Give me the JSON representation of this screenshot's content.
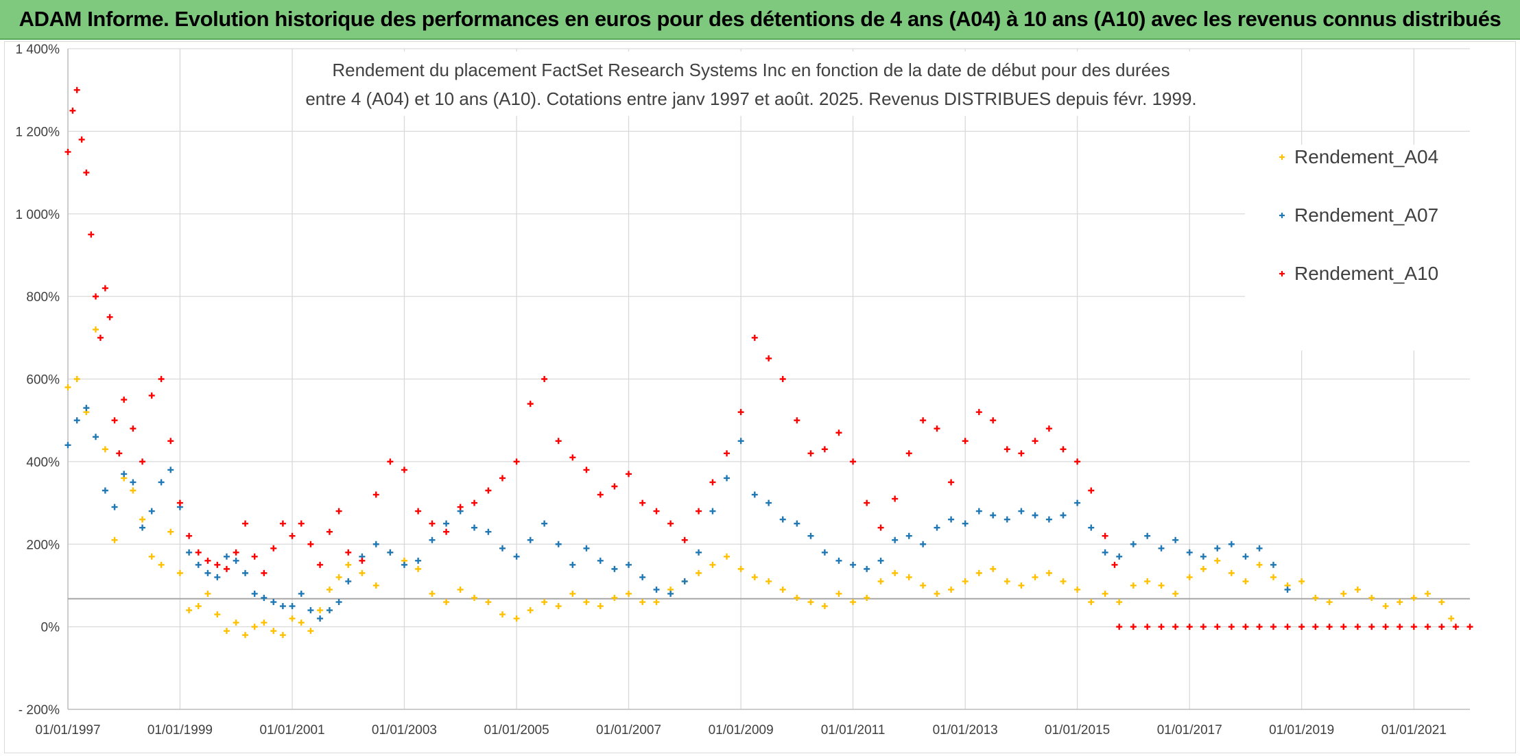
{
  "banner": {
    "title": "ADAM Informe. Evolution historique des performances en euros pour des détentions de 4 ans (A04) à 10 ans (A10) avec les revenus connus distribués",
    "background": "#7fc97f"
  },
  "chart_data": {
    "type": "scatter",
    "title_lines": [
      "Rendement du placement FactSet Research Systems Inc en fonction de la date de début pour des durées",
      "entre 4 (A04) et 10 ans (A10). Cotations entre janv 1997 et août. 2025. Revenus DISTRIBUES depuis févr. 1999."
    ],
    "xlabel": "",
    "ylabel": "",
    "x_ticks": [
      "01/01/1997",
      "01/01/1999",
      "01/01/2001",
      "01/01/2003",
      "01/01/2005",
      "01/01/2007",
      "01/01/2009",
      "01/01/2011",
      "01/01/2013",
      "01/01/2015",
      "01/01/2017",
      "01/01/2019",
      "01/01/2021"
    ],
    "y_ticks": [
      "- 200%",
      "0%",
      "200%",
      "400%",
      "600%",
      "800%",
      "1 000%",
      "1 200%",
      "1 400%"
    ],
    "xlim": [
      "1997-01-01",
      "2022-01-01"
    ],
    "ylim": [
      -200,
      1400
    ],
    "reference_line": 68,
    "grid": true,
    "legend_position": "top-right",
    "series": [
      {
        "name": "Rendement_A04",
        "color": "#ffc000",
        "x": [
          "1997-01",
          "1997-03",
          "1997-05",
          "1997-07",
          "1997-09",
          "1997-11",
          "1998-01",
          "1998-03",
          "1998-05",
          "1998-07",
          "1998-09",
          "1998-11",
          "1999-01",
          "1999-03",
          "1999-05",
          "1999-07",
          "1999-09",
          "1999-11",
          "2000-01",
          "2000-03",
          "2000-05",
          "2000-07",
          "2000-09",
          "2000-11",
          "2001-01",
          "2001-03",
          "2001-05",
          "2001-07",
          "2001-09",
          "2001-11",
          "2002-01",
          "2002-04",
          "2002-07",
          "2002-10",
          "2003-01",
          "2003-04",
          "2003-07",
          "2003-10",
          "2004-01",
          "2004-04",
          "2004-07",
          "2004-10",
          "2005-01",
          "2005-04",
          "2005-07",
          "2005-10",
          "2006-01",
          "2006-04",
          "2006-07",
          "2006-10",
          "2007-01",
          "2007-04",
          "2007-07",
          "2007-10",
          "2008-01",
          "2008-04",
          "2008-07",
          "2008-10",
          "2009-01",
          "2009-04",
          "2009-07",
          "2009-10",
          "2010-01",
          "2010-04",
          "2010-07",
          "2010-10",
          "2011-01",
          "2011-04",
          "2011-07",
          "2011-10",
          "2012-01",
          "2012-04",
          "2012-07",
          "2012-10",
          "2013-01",
          "2013-04",
          "2013-07",
          "2013-10",
          "2014-01",
          "2014-04",
          "2014-07",
          "2014-10",
          "2015-01",
          "2015-04",
          "2015-07",
          "2015-10",
          "2016-01",
          "2016-04",
          "2016-07",
          "2016-10",
          "2017-01",
          "2017-04",
          "2017-07",
          "2017-10",
          "2018-01",
          "2018-04",
          "2018-07",
          "2018-10",
          "2019-01",
          "2019-04",
          "2019-07",
          "2019-10",
          "2020-01",
          "2020-04",
          "2020-07",
          "2020-10",
          "2021-01",
          "2021-04",
          "2021-07",
          "2021-09"
        ],
        "values": [
          580,
          600,
          520,
          720,
          430,
          210,
          360,
          330,
          260,
          170,
          150,
          230,
          130,
          40,
          50,
          80,
          30,
          -10,
          10,
          -20,
          0,
          10,
          -10,
          -20,
          20,
          10,
          -10,
          40,
          90,
          120,
          150,
          130,
          100,
          180,
          160,
          140,
          80,
          60,
          90,
          70,
          60,
          30,
          20,
          40,
          60,
          50,
          80,
          60,
          50,
          70,
          80,
          60,
          60,
          90,
          110,
          130,
          150,
          170,
          140,
          120,
          110,
          90,
          70,
          60,
          50,
          80,
          60,
          70,
          110,
          130,
          120,
          100,
          80,
          90,
          110,
          130,
          140,
          110,
          100,
          120,
          130,
          110,
          90,
          60,
          80,
          60,
          100,
          110,
          100,
          80,
          120,
          140,
          160,
          130,
          110,
          150,
          120,
          100,
          110,
          70,
          60,
          80,
          90,
          70,
          50,
          60,
          70,
          80,
          60,
          20
        ]
      },
      {
        "name": "Rendement_A07",
        "color": "#1f77b4",
        "x": [
          "1997-01",
          "1997-03",
          "1997-05",
          "1997-07",
          "1997-09",
          "1997-11",
          "1998-01",
          "1998-03",
          "1998-05",
          "1998-07",
          "1998-09",
          "1998-11",
          "1999-01",
          "1999-03",
          "1999-05",
          "1999-07",
          "1999-09",
          "1999-11",
          "2000-01",
          "2000-03",
          "2000-05",
          "2000-07",
          "2000-09",
          "2000-11",
          "2001-01",
          "2001-03",
          "2001-05",
          "2001-07",
          "2001-09",
          "2001-11",
          "2002-01",
          "2002-04",
          "2002-07",
          "2002-10",
          "2003-01",
          "2003-04",
          "2003-07",
          "2003-10",
          "2004-01",
          "2004-04",
          "2004-07",
          "2004-10",
          "2005-01",
          "2005-04",
          "2005-07",
          "2005-10",
          "2006-01",
          "2006-04",
          "2006-07",
          "2006-10",
          "2007-01",
          "2007-04",
          "2007-07",
          "2007-10",
          "2008-01",
          "2008-04",
          "2008-07",
          "2008-10",
          "2009-01",
          "2009-04",
          "2009-07",
          "2009-10",
          "2010-01",
          "2010-04",
          "2010-07",
          "2010-10",
          "2011-01",
          "2011-04",
          "2011-07",
          "2011-10",
          "2012-01",
          "2012-04",
          "2012-07",
          "2012-10",
          "2013-01",
          "2013-04",
          "2013-07",
          "2013-10",
          "2014-01",
          "2014-04",
          "2014-07",
          "2014-10",
          "2015-01",
          "2015-04",
          "2015-07",
          "2015-10",
          "2016-01",
          "2016-04",
          "2016-07",
          "2016-10",
          "2017-01",
          "2017-04",
          "2017-07",
          "2017-10",
          "2018-01",
          "2018-04",
          "2018-07",
          "2018-10"
        ],
        "values": [
          440,
          500,
          530,
          460,
          330,
          290,
          370,
          350,
          240,
          280,
          350,
          380,
          290,
          180,
          150,
          130,
          120,
          170,
          160,
          130,
          80,
          70,
          60,
          50,
          50,
          80,
          40,
          20,
          40,
          60,
          110,
          170,
          200,
          180,
          150,
          160,
          210,
          250,
          280,
          240,
          230,
          190,
          170,
          210,
          250,
          200,
          150,
          190,
          160,
          140,
          150,
          120,
          90,
          80,
          110,
          180,
          280,
          360,
          450,
          320,
          300,
          260,
          250,
          220,
          180,
          160,
          150,
          140,
          160,
          210,
          220,
          200,
          240,
          260,
          250,
          280,
          270,
          260,
          280,
          270,
          260,
          270,
          300,
          240,
          180,
          170,
          200,
          220,
          190,
          210,
          180,
          170,
          190,
          200,
          170,
          190,
          150,
          90
        ]
      },
      {
        "name": "Rendement_A10",
        "color": "#ff0000",
        "x": [
          "1997-01",
          "1997-02",
          "1997-03",
          "1997-04",
          "1997-05",
          "1997-06",
          "1997-07",
          "1997-08",
          "1997-09",
          "1997-10",
          "1997-11",
          "1997-12",
          "1998-01",
          "1998-03",
          "1998-05",
          "1998-07",
          "1998-09",
          "1998-11",
          "1999-01",
          "1999-03",
          "1999-05",
          "1999-07",
          "1999-09",
          "1999-11",
          "2000-01",
          "2000-03",
          "2000-05",
          "2000-07",
          "2000-09",
          "2000-11",
          "2001-01",
          "2001-03",
          "2001-05",
          "2001-07",
          "2001-09",
          "2001-11",
          "2002-01",
          "2002-04",
          "2002-07",
          "2002-10",
          "2003-01",
          "2003-04",
          "2003-07",
          "2003-10",
          "2004-01",
          "2004-04",
          "2004-07",
          "2004-10",
          "2005-01",
          "2005-04",
          "2005-07",
          "2005-10",
          "2006-01",
          "2006-04",
          "2006-07",
          "2006-10",
          "2007-01",
          "2007-04",
          "2007-07",
          "2007-10",
          "2008-01",
          "2008-04",
          "2008-07",
          "2008-10",
          "2009-01",
          "2009-04",
          "2009-07",
          "2009-10",
          "2010-01",
          "2010-04",
          "2010-07",
          "2010-10",
          "2011-01",
          "2011-04",
          "2011-07",
          "2011-10",
          "2012-01",
          "2012-04",
          "2012-07",
          "2012-10",
          "2013-01",
          "2013-04",
          "2013-07",
          "2013-10",
          "2014-01",
          "2014-04",
          "2014-07",
          "2014-10",
          "2015-01",
          "2015-04",
          "2015-07",
          "2015-09"
        ],
        "values": [
          1150,
          1250,
          1300,
          1180,
          1100,
          950,
          800,
          700,
          820,
          750,
          500,
          420,
          550,
          480,
          400,
          560,
          600,
          450,
          300,
          220,
          180,
          160,
          150,
          140,
          180,
          250,
          170,
          130,
          190,
          250,
          220,
          250,
          200,
          150,
          230,
          280,
          180,
          160,
          320,
          400,
          380,
          280,
          250,
          230,
          290,
          300,
          330,
          360,
          400,
          540,
          600,
          450,
          410,
          380,
          320,
          340,
          370,
          300,
          280,
          250,
          210,
          280,
          350,
          420,
          520,
          700,
          650,
          600,
          500,
          420,
          430,
          470,
          400,
          300,
          240,
          310,
          420,
          500,
          480,
          350,
          450,
          520,
          500,
          430,
          420,
          450,
          480,
          430,
          400,
          330,
          220,
          150
        ]
      },
      {
        "name": "Rendement_A10",
        "color": "#ff0000",
        "x": [
          "2015-10",
          "2016-01",
          "2016-04",
          "2016-07",
          "2016-10",
          "2017-01",
          "2017-04",
          "2017-07",
          "2017-10",
          "2018-01",
          "2018-04",
          "2018-07",
          "2018-10",
          "2019-01",
          "2019-04",
          "2019-07",
          "2019-10",
          "2020-01",
          "2020-04",
          "2020-07",
          "2020-10",
          "2021-01",
          "2021-04",
          "2021-07",
          "2021-10",
          "2022-01"
        ],
        "values": [
          0,
          0,
          0,
          0,
          0,
          0,
          0,
          0,
          0,
          0,
          0,
          0,
          0,
          0,
          0,
          0,
          0,
          0,
          0,
          0,
          0,
          0,
          0,
          0,
          0,
          0
        ]
      }
    ]
  }
}
